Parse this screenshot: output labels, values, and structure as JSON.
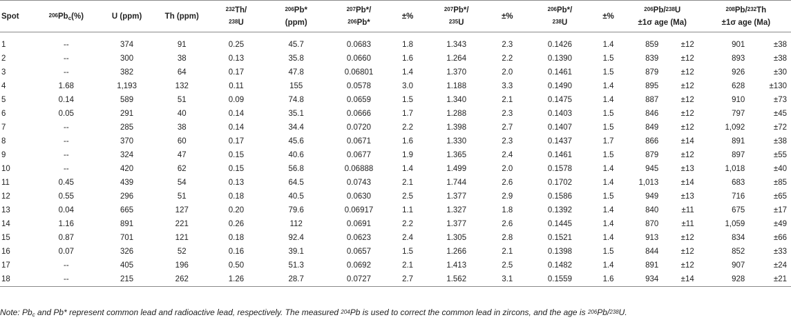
{
  "table": {
    "headers": {
      "spot": "Spot",
      "pbc": {
        "sup": "206",
        "base": "Pb",
        "sub": "c",
        "tail": "(%)"
      },
      "u": "U (ppm)",
      "th": "Th (ppm)",
      "th_u": {
        "sup1": "232",
        "line1": "Th/",
        "sup2": "238",
        "line2": "U"
      },
      "pb206_ppm": {
        "sup1": "206",
        "line1": "Pb*",
        "line2": "(ppm)"
      },
      "pb207_206": {
        "sup1": "207",
        "line1": "Pb*/",
        "sup2": "206",
        "line2": "Pb*"
      },
      "err1": "±%",
      "pb207_235": {
        "sup1": "207",
        "line1": "Pb*/",
        "sup2": "235",
        "line2": "U"
      },
      "err2": "±%",
      "pb206_238": {
        "sup1": "206",
        "line1": "Pb*/",
        "sup2": "238",
        "line2": "U"
      },
      "err3": "±%",
      "age206": {
        "sup1": "206",
        "a": "Pb/",
        "sup2": "238",
        "b": "U",
        "line2": "±1σ age (Ma)"
      },
      "age208": {
        "sup1": "208",
        "a": "Pb/",
        "sup2": "232",
        "b": "Th",
        "line2": "±1σ age (Ma)"
      }
    },
    "rows": [
      [
        "1",
        "--",
        "374",
        "91",
        "0.25",
        "45.7",
        "0.0683",
        "1.8",
        "1.343",
        "2.3",
        "0.1426",
        "1.4",
        "859",
        "±12",
        "901",
        "±38"
      ],
      [
        "2",
        "--",
        "300",
        "38",
        "0.13",
        "35.8",
        "0.0660",
        "1.6",
        "1.264",
        "2.2",
        "0.1390",
        "1.5",
        "839",
        "±12",
        "893",
        "±38"
      ],
      [
        "3",
        "--",
        "382",
        "64",
        "0.17",
        "47.8",
        "0.06801",
        "1.4",
        "1.370",
        "2.0",
        "0.1461",
        "1.5",
        "879",
        "±12",
        "926",
        "±30"
      ],
      [
        "4",
        "1.68",
        "1,193",
        "132",
        "0.11",
        "155",
        "0.0578",
        "3.0",
        "1.188",
        "3.3",
        "0.1490",
        "1.4",
        "895",
        "±12",
        "628",
        "±130"
      ],
      [
        "5",
        "0.14",
        "589",
        "51",
        "0.09",
        "74.8",
        "0.0659",
        "1.5",
        "1.340",
        "2.1",
        "0.1475",
        "1.4",
        "887",
        "±12",
        "910",
        "±73"
      ],
      [
        "6",
        "0.05",
        "291",
        "40",
        "0.14",
        "35.1",
        "0.0666",
        "1.7",
        "1.288",
        "2.3",
        "0.1403",
        "1.5",
        "846",
        "±12",
        "797",
        "±45"
      ],
      [
        "7",
        "--",
        "285",
        "38",
        "0.14",
        "34.4",
        "0.0720",
        "2.2",
        "1.398",
        "2.7",
        "0.1407",
        "1.5",
        "849",
        "±12",
        "1,092",
        "±72"
      ],
      [
        "8",
        "--",
        "370",
        "60",
        "0.17",
        "45.6",
        "0.0671",
        "1.6",
        "1.330",
        "2.3",
        "0.1437",
        "1.7",
        "866",
        "±14",
        "891",
        "±38"
      ],
      [
        "9",
        "--",
        "324",
        "47",
        "0.15",
        "40.6",
        "0.0677",
        "1.9",
        "1.365",
        "2.4",
        "0.1461",
        "1.5",
        "879",
        "±12",
        "897",
        "±55"
      ],
      [
        "10",
        "--",
        "420",
        "62",
        "0.15",
        "56.8",
        "0.06888",
        "1.4",
        "1.499",
        "2.0",
        "0.1578",
        "1.4",
        "945",
        "±13",
        "1,018",
        "±40"
      ],
      [
        "11",
        "0.45",
        "439",
        "54",
        "0.13",
        "64.5",
        "0.0743",
        "2.1",
        "1.744",
        "2.6",
        "0.1702",
        "1.4",
        "1,013",
        "±14",
        "683",
        "±85"
      ],
      [
        "12",
        "0.55",
        "296",
        "51",
        "0.18",
        "40.5",
        "0.0630",
        "2.5",
        "1.377",
        "2.9",
        "0.1586",
        "1.5",
        "949",
        "±13",
        "716",
        "±65"
      ],
      [
        "13",
        "0.04",
        "665",
        "127",
        "0.20",
        "79.6",
        "0.06917",
        "1.1",
        "1.327",
        "1.8",
        "0.1392",
        "1.4",
        "840",
        "±11",
        "675",
        "±17"
      ],
      [
        "14",
        "1.16",
        "891",
        "221",
        "0.26",
        "112",
        "0.0691",
        "2.2",
        "1.377",
        "2.6",
        "0.1445",
        "1.4",
        "870",
        "±11",
        "1,059",
        "±49"
      ],
      [
        "15",
        "0.87",
        "701",
        "121",
        "0.18",
        "92.4",
        "0.0623",
        "2.4",
        "1.305",
        "2.8",
        "0.1521",
        "1.4",
        "913",
        "±12",
        "834",
        "±66"
      ],
      [
        "16",
        "0.07",
        "326",
        "52",
        "0.16",
        "39.1",
        "0.0657",
        "1.5",
        "1.266",
        "2.1",
        "0.1398",
        "1.5",
        "844",
        "±12",
        "852",
        "±33"
      ],
      [
        "17",
        "--",
        "405",
        "196",
        "0.50",
        "51.3",
        "0.0692",
        "2.1",
        "1.413",
        "2.5",
        "0.1482",
        "1.4",
        "891",
        "±12",
        "907",
        "±24"
      ],
      [
        "18",
        "--",
        "215",
        "262",
        "1.26",
        "28.7",
        "0.0727",
        "2.7",
        "1.562",
        "3.1",
        "0.1559",
        "1.6",
        "934",
        "±14",
        "928",
        "±21"
      ]
    ]
  },
  "note": {
    "t1": "Note: Pb",
    "sub1": "c",
    "t2": " and Pb* represent common lead and radioactive lead, respectively. The measured ",
    "sup1": "204",
    "t3": "Pb is used to correct the common lead in zircons, and the age is ",
    "sup2": "206",
    "t4": "Pb/",
    "sup3": "238",
    "t5": "U."
  }
}
